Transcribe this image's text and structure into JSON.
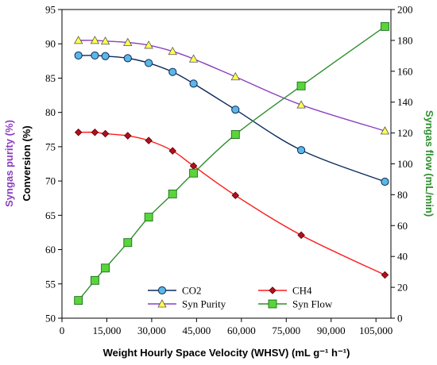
{
  "chart_data": {
    "type": "line",
    "xlabel": "Weight Hourly Space Velocity (WHSV) (mL g⁻¹ h⁻¹)",
    "ylabel_left_outer": "Syngas purity (%)",
    "ylabel_left_inner": "Conversion (%)",
    "ylabel_right": "Syngas  flow (mL/min)",
    "xlim": [
      0,
      110000
    ],
    "ylim_left": [
      50,
      95
    ],
    "ylim_right": [
      0,
      200
    ],
    "x_ticks": [
      "0",
      "15,000",
      "30,000",
      "45,000",
      "60,000",
      "75,000",
      "90,000",
      "105,000"
    ],
    "y_left_ticks": [
      "50",
      "55",
      "60",
      "65",
      "70",
      "75",
      "80",
      "85",
      "90",
      "95"
    ],
    "y_right_ticks": [
      "0",
      "20",
      "40",
      "60",
      "80",
      "100",
      "120",
      "140",
      "160",
      "180",
      "200"
    ],
    "grid": false,
    "legend_position": "bottom-center",
    "series": [
      {
        "name": "CO2",
        "axis": "left",
        "color": "#0b2a5b",
        "marker": "circle",
        "marker_fill": "#5bb7e6",
        "x": [
          5500,
          11000,
          14500,
          22000,
          29000,
          37000,
          44000,
          58000,
          80000,
          108000
        ],
        "values": [
          88.3,
          88.3,
          88.2,
          87.9,
          87.2,
          85.9,
          84.2,
          80.4,
          74.5,
          69.9
        ]
      },
      {
        "name": "CH4",
        "axis": "left",
        "color": "#ff1a1a",
        "marker": "diamond",
        "marker_fill": "#b01020",
        "x": [
          5500,
          11000,
          14500,
          22000,
          29000,
          37000,
          44000,
          58000,
          80000,
          108000
        ],
        "values": [
          77.1,
          77.1,
          76.9,
          76.6,
          75.9,
          74.4,
          72.2,
          67.9,
          62.1,
          56.3
        ]
      },
      {
        "name": "Syn Purity",
        "axis": "left",
        "color": "#8b3fbf",
        "marker": "triangle",
        "marker_fill": "#ffff4d",
        "x": [
          5500,
          11000,
          14500,
          22000,
          29000,
          37000,
          44000,
          58000,
          80000,
          108000
        ],
        "values": [
          90.5,
          90.5,
          90.4,
          90.2,
          89.8,
          88.9,
          87.8,
          85.2,
          81.1,
          77.3
        ]
      },
      {
        "name": "Syn Flow",
        "axis": "right",
        "color": "#2f8f2f",
        "marker": "square",
        "marker_fill": "#59d43a",
        "x": [
          5500,
          11000,
          14500,
          22000,
          29000,
          37000,
          44000,
          58000,
          80000,
          108000
        ],
        "values": [
          11.5,
          24.5,
          32.5,
          49,
          65.5,
          80.5,
          94,
          119,
          150.5,
          189
        ]
      }
    ]
  }
}
